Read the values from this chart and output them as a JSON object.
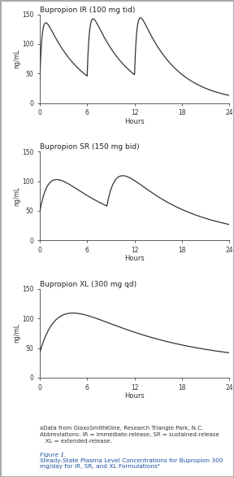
{
  "title1": "Bupropion IR (100 mg tid)",
  "title2": "Bupropion SR (150 mg bid)",
  "title3": "Bupropion XL (300 mg qd)",
  "ylabel": "ng/mL",
  "xlabel": "Hours",
  "ylim": [
    0,
    150
  ],
  "xlim": [
    0,
    24
  ],
  "xticks": [
    0,
    6,
    12,
    18,
    24
  ],
  "yticks": [
    0,
    50,
    100,
    150
  ],
  "footnote": "aData from GlaxoSmithKline, Research Triangle Park, N.C.\nAbbreviations: IR = immediate-release, SR = sustained-release\n   XL = extended-release.",
  "figure_caption_line1": "Figure 1.",
  "figure_caption_line2": "Steady-State Plasma Level Concentrations for Bupropion 300",
  "figure_caption_line3": "mg/day for IR, SR, and XL Formulations",
  "line_color": "#333333",
  "bg_color": "#ffffff",
  "caption_color": "#1a50a0",
  "border_color": "#aaaaaa",
  "ir_doses": [
    0,
    6,
    12
  ],
  "ir_ka": 3.5,
  "ir_ke": 0.22,
  "ir_amp": 125,
  "ir_baseline": 40,
  "sr_doses": [
    0,
    8.5
  ],
  "sr_ka": 0.9,
  "sr_ke": 0.13,
  "sr_amp": 88,
  "sr_baseline": 25,
  "xl_dose": 0,
  "xl_ka": 0.45,
  "xl_ke": 0.085,
  "xl_amp": 108,
  "xl_baseline": 22
}
